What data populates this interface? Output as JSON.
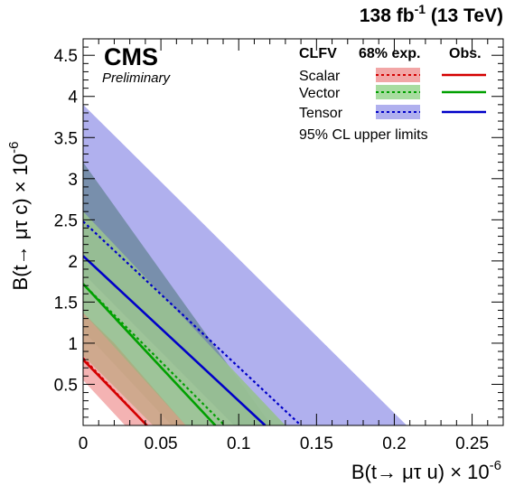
{
  "chart_data": {
    "type": "area",
    "header_right": "138 fb",
    "header_right_sup": "-1",
    "header_right_tail": " (13 TeV)",
    "cms_label": "CMS",
    "cms_sublabel": "Preliminary",
    "xlabel": "B(t→ μτ u) × 10",
    "xlabel_sup": "-6",
    "ylabel": "B(t→ μτ c) × 10",
    "ylabel_sup": "-6",
    "xlim": [
      0,
      0.27
    ],
    "ylim": [
      0,
      4.7
    ],
    "x_ticks": [
      {
        "value": 0,
        "label": "0"
      },
      {
        "value": 0.05,
        "label": "0.05"
      },
      {
        "value": 0.1,
        "label": "0.1"
      },
      {
        "value": 0.15,
        "label": "0.15"
      },
      {
        "value": 0.2,
        "label": "0.2"
      },
      {
        "value": 0.25,
        "label": "0.25"
      }
    ],
    "y_ticks": [
      {
        "value": 0.5,
        "label": "0.5"
      },
      {
        "value": 1,
        "label": "1"
      },
      {
        "value": 1.5,
        "label": "1.5"
      },
      {
        "value": 2,
        "label": "2"
      },
      {
        "value": 2.5,
        "label": "2.5"
      },
      {
        "value": 3,
        "label": "3"
      },
      {
        "value": 3.5,
        "label": "3.5"
      },
      {
        "value": 4,
        "label": "4"
      },
      {
        "value": 4.5,
        "label": "4.5"
      }
    ],
    "legend": {
      "placement": "top-right",
      "header_clfv": "CLFV",
      "header_exp": "68% exp.",
      "header_obs": "Obs.",
      "footer": "95% CL upper limits"
    },
    "series": [
      {
        "name": "Scalar",
        "band_color": "#f2a6a6",
        "line_color": "#d40000",
        "band_outer": {
          "x0": 0.066,
          "y0": 1.37
        },
        "band_inner": {
          "x0": 0.027,
          "y0": 0.55
        },
        "expected": {
          "x0": 0.041,
          "y0": 0.82
        },
        "observed": {
          "x0": 0.041,
          "y0": 0.8
        }
      },
      {
        "name": "Vector",
        "band_color": "#a8dca0",
        "line_color": "#00a000",
        "band_outer": {
          "x0": 0.13,
          "y0": 2.6
        },
        "band_inner": {
          "x0": 0.057,
          "y0": 1.15
        },
        "expected": {
          "x0": 0.091,
          "y0": 1.72
        },
        "observed": {
          "x0": 0.085,
          "y0": 1.72
        }
      },
      {
        "name": "Tensor",
        "band_color": "#b0b0ee",
        "line_color": "#0000c8",
        "band_outer": {
          "x0": 0.208,
          "y0": 3.9
        },
        "band_inner": {
          "x0": 0.097,
          "y0": 1.85
        },
        "expected": {
          "x0": 0.14,
          "y0": 2.48
        },
        "observed": {
          "x0": 0.117,
          "y0": 2.06
        }
      }
    ]
  }
}
